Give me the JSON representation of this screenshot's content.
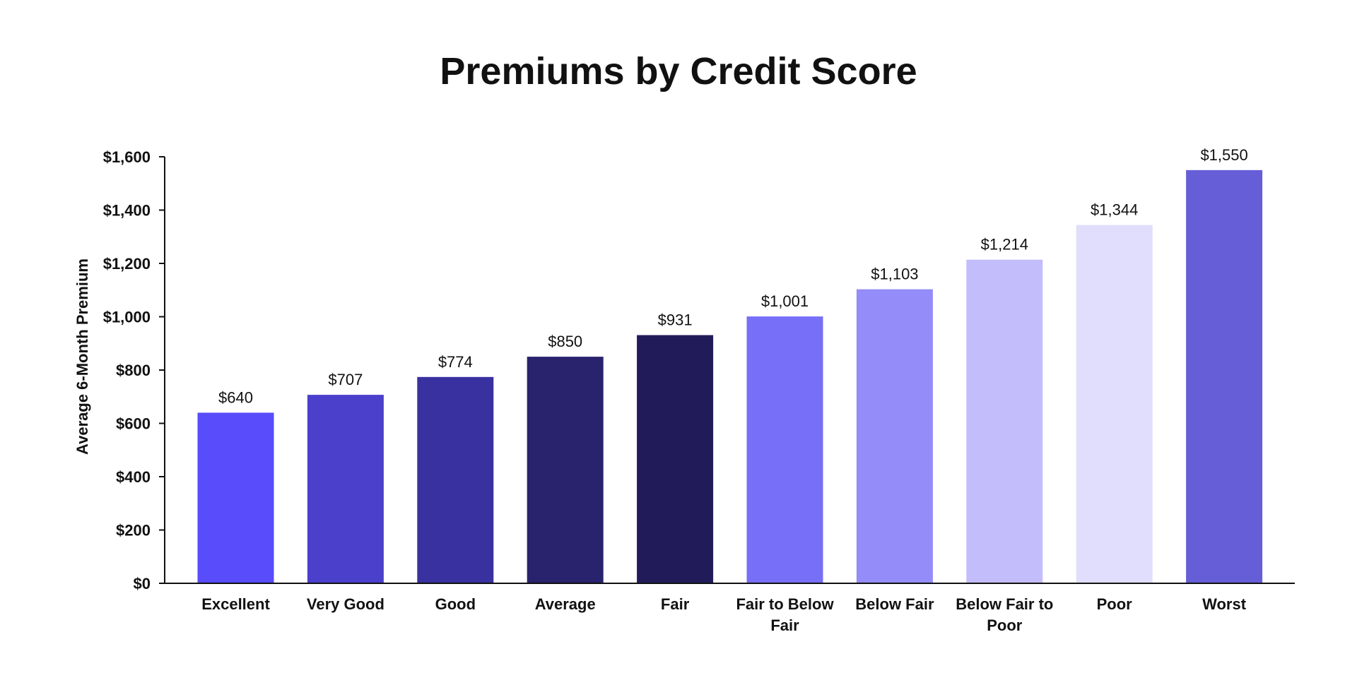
{
  "chart_data": {
    "type": "bar",
    "title": "Premiums by Credit Score",
    "xlabel": "",
    "ylabel": "Average 6-Month Premium",
    "ylim": [
      0,
      1600
    ],
    "yticks": [
      0,
      200,
      400,
      600,
      800,
      1000,
      1200,
      1400,
      1600
    ],
    "ytick_labels": [
      "$0",
      "$200",
      "$400",
      "$600",
      "$800",
      "$1,000",
      "$1,200",
      "$1,400",
      "$1,600"
    ],
    "categories": [
      "Excellent",
      "Very Good",
      "Good",
      "Average",
      "Fair",
      "Fair to Below Fair",
      "Below Fair",
      "Below Fair to Poor",
      "Poor",
      "Worst"
    ],
    "category_label_lines": [
      [
        "Excellent"
      ],
      [
        "Very Good"
      ],
      [
        "Good"
      ],
      [
        "Average"
      ],
      [
        "Fair"
      ],
      [
        "Fair to Below",
        "Fair"
      ],
      [
        "Below Fair"
      ],
      [
        "Below Fair to",
        "Poor"
      ],
      [
        "Poor"
      ],
      [
        "Worst"
      ]
    ],
    "values": [
      640,
      707,
      774,
      850,
      931,
      1001,
      1103,
      1214,
      1344,
      1550
    ],
    "data_labels": [
      "$640",
      "$707",
      "$774",
      "$850",
      "$931",
      "$1,001",
      "$1,103",
      "$1,214",
      "$1,344",
      "$1,550"
    ],
    "colors": [
      "#584cfb",
      "#4a40cc",
      "#3a31a0",
      "#29236d",
      "#211c59",
      "#776ff7",
      "#948cf8",
      "#c3bdfb",
      "#e0defc",
      "#665ed7"
    ],
    "grid": false,
    "legend": "none"
  }
}
